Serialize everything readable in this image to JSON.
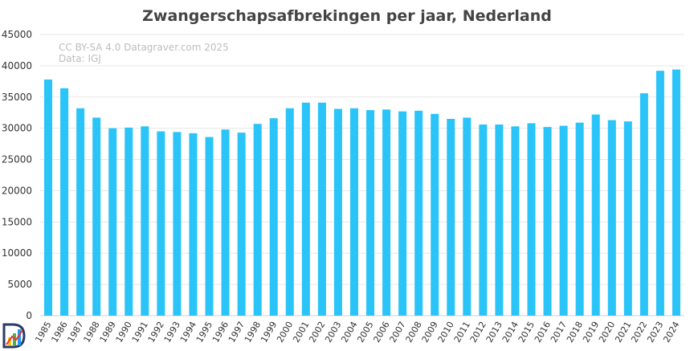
{
  "chart_data": {
    "type": "bar",
    "title": "Zwangerschapsafbrekingen per jaar, Nederland",
    "credit_lines": [
      "CC BY-SA 4.0 Datagraver.com 2025",
      "Data: IGJ"
    ],
    "categories": [
      "1985",
      "1986",
      "1987",
      "1988",
      "1989",
      "1990",
      "1991",
      "1992",
      "1993",
      "1994",
      "1995",
      "1996",
      "1997",
      "1998",
      "1999",
      "2000",
      "2001",
      "2002",
      "2003",
      "2004",
      "2005",
      "2006",
      "2007",
      "2008",
      "2009",
      "2010",
      "2011",
      "2012",
      "2013",
      "2014",
      "2015",
      "2016",
      "2017",
      "2018",
      "2019",
      "2020",
      "2021",
      "2022",
      "2023",
      "2024"
    ],
    "values": [
      37800,
      36400,
      33200,
      31700,
      30000,
      30100,
      30300,
      29500,
      29400,
      29200,
      28600,
      29800,
      29300,
      30700,
      31600,
      33200,
      34100,
      34100,
      33100,
      33200,
      32900,
      33000,
      32700,
      32800,
      32300,
      31500,
      31700,
      30600,
      30600,
      30300,
      30800,
      30200,
      30400,
      30900,
      32200,
      31300,
      31100,
      35600,
      39200,
      39400
    ],
    "yticks": [
      "0",
      "5000",
      "10000",
      "15000",
      "20000",
      "25000",
      "30000",
      "35000",
      "40000",
      "45000"
    ],
    "ylim": [
      0,
      45000
    ],
    "xlabel": "",
    "ylabel": "",
    "grid": true,
    "legend": "none",
    "bar_color": "#2bc4f9"
  },
  "logo": {
    "icon": "datagraver-logo-icon"
  }
}
